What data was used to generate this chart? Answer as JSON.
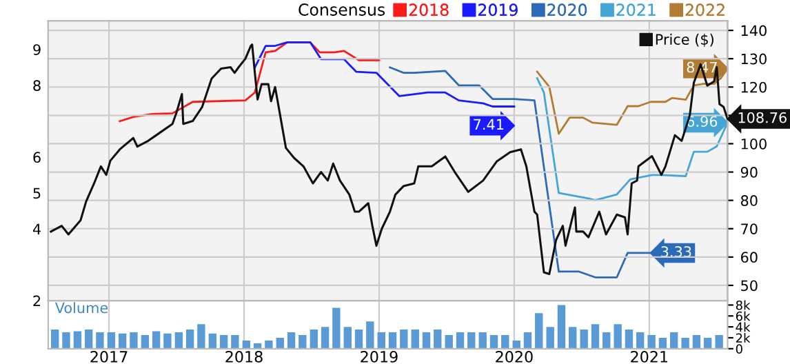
{
  "chart_data": [
    {
      "type": "line",
      "legend_title": "Consensus",
      "legend": "top",
      "grid": true,
      "tick_labels": "y",
      "xlim": [
        2016.55,
        2021.58
      ],
      "xticks": [
        2017,
        2018,
        2019,
        2020,
        2021
      ],
      "ylim": [
        2,
        9.8
      ],
      "yticks": [
        2,
        4,
        5,
        6,
        8,
        9
      ],
      "y2lim": [
        44.6,
        143.4
      ],
      "y2ticks": [
        50,
        60,
        70,
        80,
        90,
        100,
        {
          "value": 110,
          "label": null
        },
        120,
        130,
        140
      ],
      "series": [
        {
          "name": "2018",
          "color": "#ff1a1a",
          "x": [
            2017.08,
            2017.18,
            2017.32,
            2017.47,
            2017.62,
            2018.01,
            2018.08,
            2018.16,
            2018.23,
            2018.32,
            2018.49,
            2018.56,
            2018.67,
            2018.74,
            2018.85,
            2019.0
          ],
          "values": [
            7.0,
            7.12,
            7.2,
            7.22,
            7.54,
            7.58,
            7.8,
            8.92,
            8.96,
            9.2,
            9.2,
            8.92,
            8.92,
            8.96,
            8.7,
            8.7
          ]
        },
        {
          "name": "2019",
          "color": "#1a1aff",
          "x": [
            2018.08,
            2018.16,
            2018.23,
            2018.32,
            2018.49,
            2018.57,
            2018.74,
            2018.83,
            2018.98,
            2019.15,
            2019.36,
            2019.49,
            2019.59,
            2019.77,
            2019.84,
            2020.0
          ],
          "values": [
            8.5,
            9.1,
            9.1,
            9.2,
            9.2,
            8.73,
            8.73,
            8.38,
            8.35,
            7.7,
            7.8,
            7.8,
            7.58,
            7.5,
            7.41,
            7.41
          ]
        },
        {
          "name": "2020",
          "color": "#2a6ab8",
          "x": [
            2019.08,
            2019.18,
            2019.26,
            2019.49,
            2019.59,
            2019.74,
            2019.84,
            2020.0,
            2020.15,
            2020.33,
            2020.48,
            2020.6,
            2020.76,
            2020.84,
            2021.01
          ],
          "values": [
            8.5,
            8.35,
            8.35,
            8.4,
            8.0,
            8.0,
            7.62,
            7.62,
            7.58,
            2.81,
            2.81,
            2.65,
            2.65,
            3.33,
            3.33
          ]
        },
        {
          "name": "2021",
          "color": "#45a6d6",
          "x": [
            2020.17,
            2020.22,
            2020.33,
            2020.55,
            2020.6,
            2020.76,
            2020.86,
            2021.02,
            2021.09,
            2021.27,
            2021.33,
            2021.43,
            2021.5,
            2021.58
          ],
          "values": [
            8.2,
            7.8,
            5.0,
            4.85,
            4.8,
            4.96,
            5.38,
            5.5,
            5.5,
            5.47,
            6.15,
            6.15,
            6.3,
            6.96
          ]
        },
        {
          "name": "2022",
          "color": "#b27c35",
          "x": [
            2020.17,
            2020.26,
            2020.33,
            2020.41,
            2020.51,
            2020.58,
            2020.76,
            2020.84,
            2020.92,
            2021.01,
            2021.12,
            2021.17,
            2021.27,
            2021.33,
            2021.4,
            2021.48,
            2021.53,
            2021.58
          ],
          "values": [
            8.38,
            7.96,
            6.65,
            7.1,
            7.1,
            6.96,
            6.9,
            7.42,
            7.42,
            7.54,
            7.54,
            7.65,
            7.6,
            8.0,
            8.04,
            8.04,
            8.2,
            8.47
          ]
        },
        {
          "name": "Price ($)",
          "color": "#111111",
          "axis": "y2",
          "x": [
            2016.57,
            2016.65,
            2016.7,
            2016.79,
            2016.83,
            2016.89,
            2016.94,
            2016.98,
            2017.01,
            2017.08,
            2017.18,
            2017.21,
            2017.29,
            2017.35,
            2017.47,
            2017.5,
            2017.54,
            2017.55,
            2017.62,
            2017.69,
            2017.76,
            2017.83,
            2017.9,
            2017.93,
            2017.96,
            2018.01,
            2018.05,
            2018.06,
            2018.08,
            2018.1,
            2018.13,
            2018.18,
            2018.2,
            2018.23,
            2018.26,
            2018.31,
            2018.37,
            2018.44,
            2018.51,
            2018.57,
            2018.62,
            2018.66,
            2018.71,
            2018.78,
            2018.82,
            2018.85,
            2018.92,
            2018.95,
            2018.98,
            2019.02,
            2019.08,
            2019.12,
            2019.18,
            2019.26,
            2019.29,
            2019.39,
            2019.49,
            2019.56,
            2019.66,
            2019.77,
            2019.87,
            2019.97,
            2020.05,
            2020.09,
            2020.15,
            2020.17,
            2020.22,
            2020.26,
            2020.31,
            2020.36,
            2020.38,
            2020.45,
            2020.46,
            2020.51,
            2020.55,
            2020.63,
            2020.68,
            2020.76,
            2020.82,
            2020.84,
            2020.87,
            2020.91,
            2020.92,
            2021.02,
            2021.09,
            2021.12,
            2021.19,
            2021.24,
            2021.3,
            2021.33,
            2021.38,
            2021.43,
            2021.48,
            2021.5,
            2021.52,
            2021.55,
            2021.58
          ],
          "values": [
            69,
            71,
            68,
            73,
            79.5,
            86,
            92,
            89,
            94,
            98,
            102,
            99,
            101,
            103,
            107,
            111,
            117.5,
            107,
            108,
            113,
            123,
            126.5,
            127,
            125,
            127,
            130,
            134.5,
            135,
            125,
            115.6,
            121,
            121,
            115,
            120,
            112,
            98.5,
            95,
            92,
            86,
            90,
            87,
            93,
            87,
            82,
            76,
            76,
            79,
            71,
            64,
            70,
            76,
            82,
            85,
            86,
            92,
            92,
            95.5,
            90,
            83,
            87,
            93.7,
            97,
            98,
            92,
            76,
            75,
            54.6,
            54,
            66,
            71,
            64,
            77.5,
            69,
            69,
            67,
            76,
            68,
            75,
            74,
            68,
            86,
            87,
            92,
            95.6,
            89,
            92,
            103,
            101,
            110,
            121.5,
            128,
            120.5,
            122,
            127,
            114,
            113,
            108.76
          ],
          "value_labels": [
            null,
            null,
            null,
            null,
            null,
            null,
            null,
            null,
            null,
            null,
            null,
            null,
            null,
            null,
            null,
            null,
            null,
            null,
            null,
            null,
            null,
            null,
            null,
            null,
            null,
            null,
            null,
            null,
            null,
            null,
            null,
            null,
            null,
            null,
            null,
            null,
            null,
            null,
            null,
            null,
            null,
            null,
            null,
            null,
            null,
            null,
            null,
            null,
            null,
            null,
            null,
            null,
            null,
            null,
            null,
            null,
            null,
            null,
            null,
            null,
            null,
            null,
            null,
            null,
            null,
            null,
            null,
            null,
            null,
            null,
            null,
            null,
            null,
            null,
            null,
            null,
            null,
            null,
            null,
            null,
            null,
            null,
            null,
            null,
            null,
            null,
            null,
            null,
            null,
            null,
            null,
            null,
            null,
            null,
            null,
            null,
            "108.76"
          ]
        }
      ],
      "annotations": [
        {
          "text": "8.47",
          "x": 2021.58,
          "y": 8.47
        },
        {
          "text": "7.41",
          "x": 2020.0,
          "y": 7.41
        },
        {
          "text": "6.96",
          "x": 2021.58,
          "y": 6.96
        },
        {
          "text": "3.33",
          "x": 2021.01,
          "y": 3.33
        }
      ]
    },
    {
      "type": "bar",
      "color": "#5b9bd5",
      "grid": "x",
      "annotations": [
        "Volume"
      ],
      "xlim": [
        2016.55,
        2021.58
      ],
      "xticks": [
        2017,
        2018,
        2019,
        2020,
        2021
      ],
      "ylim": [
        0,
        8800
      ],
      "yticks": [
        {
          "value": 0,
          "label": "0"
        },
        {
          "value": 2000,
          "label": "2k"
        },
        {
          "value": 4000,
          "label": "4k"
        },
        {
          "value": 6000,
          "label": "6k"
        },
        {
          "value": 8000,
          "label": "8k"
        }
      ],
      "x": [
        2016.6,
        2016.683,
        2016.767,
        2016.85,
        2016.933,
        2017.017,
        2017.1,
        2017.183,
        2017.267,
        2017.35,
        2017.433,
        2017.517,
        2017.6,
        2017.683,
        2017.767,
        2017.85,
        2017.933,
        2018.017,
        2018.1,
        2018.183,
        2018.267,
        2018.35,
        2018.433,
        2018.517,
        2018.6,
        2018.683,
        2018.767,
        2018.85,
        2018.933,
        2019.017,
        2019.1,
        2019.183,
        2019.267,
        2019.35,
        2019.433,
        2019.517,
        2019.6,
        2019.683,
        2019.767,
        2019.85,
        2019.933,
        2020.017,
        2020.1,
        2020.183,
        2020.267,
        2020.35,
        2020.433,
        2020.517,
        2020.6,
        2020.683,
        2020.767,
        2020.85,
        2020.933,
        2021.017,
        2021.1,
        2021.183,
        2021.267,
        2021.35,
        2021.433,
        2021.517
      ],
      "values": [
        3500,
        3000,
        3200,
        3500,
        3000,
        3000,
        2800,
        3000,
        2500,
        3200,
        2800,
        3000,
        3500,
        4500,
        2800,
        2500,
        2500,
        1500,
        1000,
        1500,
        2000,
        3000,
        2500,
        3500,
        4000,
        7500,
        4000,
        3500,
        5000,
        3000,
        3000,
        3500,
        3500,
        3000,
        3500,
        2500,
        3000,
        3000,
        3000,
        2500,
        2500,
        1500,
        3000,
        6500,
        4000,
        8000,
        4000,
        3500,
        4500,
        3000,
        4500,
        3500,
        3000,
        2500,
        2000,
        3000,
        2000,
        2500,
        2000,
        2500
      ]
    }
  ]
}
